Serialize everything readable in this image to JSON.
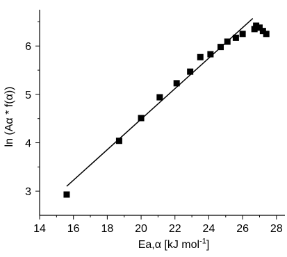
{
  "chart_data": {
    "type": "scatter",
    "title": "",
    "xlabel": "Ea,α [kJ mol⁻¹]",
    "ylabel": "ln (Aα * f(α))",
    "xlim": [
      14,
      28.5
    ],
    "ylim": [
      2.5,
      6.75
    ],
    "xticks": [
      14,
      16,
      18,
      20,
      22,
      24,
      26,
      28
    ],
    "yticks": [
      3,
      4,
      5,
      6
    ],
    "grid": false,
    "legend": "none",
    "series": [
      {
        "marker": "square",
        "color": "#000000",
        "x": [
          15.6,
          18.7,
          20.0,
          21.1,
          22.1,
          22.9,
          23.5,
          24.1,
          24.7,
          25.1,
          25.6,
          26.0,
          26.7,
          26.8,
          27.0,
          27.2,
          27.4
        ],
        "y": [
          2.93,
          4.04,
          4.51,
          4.94,
          5.23,
          5.47,
          5.77,
          5.83,
          5.98,
          6.09,
          6.17,
          6.25,
          6.35,
          6.42,
          6.38,
          6.31,
          6.25
        ]
      }
    ],
    "fit_line": {
      "color": "#000000",
      "x": [
        15.6,
        26.6
      ],
      "y": [
        3.1,
        6.57
      ]
    }
  }
}
